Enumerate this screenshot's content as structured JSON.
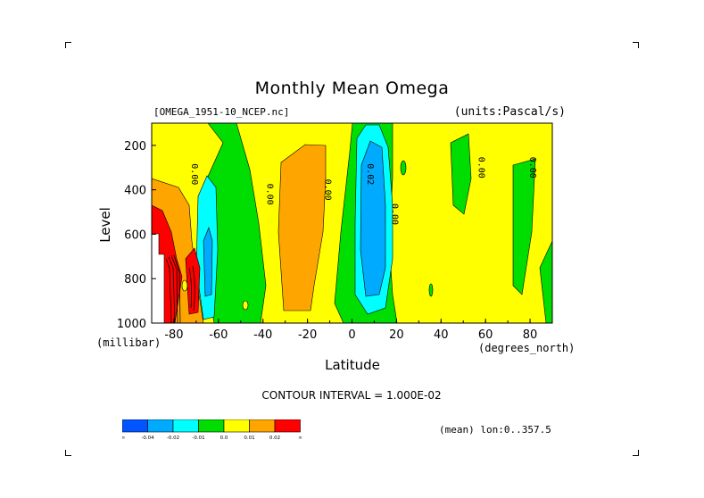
{
  "chart_data": {
    "type": "contour",
    "title": "Monthly Mean Omega",
    "file_label": "[OMEGA_1951-10_NCEP.nc]",
    "units_label": "(units:Pascal/s)",
    "xlabel": "Latitude",
    "x_units": "(degrees_north)",
    "ylabel": "Level",
    "y_units": "(millibar)",
    "xlim": [
      -90,
      90
    ],
    "ylim": [
      1000,
      100
    ],
    "x_ticks": [
      -80,
      -60,
      -40,
      -20,
      0,
      20,
      40,
      60,
      80
    ],
    "y_ticks": [
      200,
      400,
      600,
      800,
      1000
    ],
    "contour_interval_text": "CONTOUR INTERVAL = 1.000E-02",
    "mean_text": "(mean) lon:0..357.5",
    "levels": [
      -0.04,
      -0.02,
      -0.01,
      0.0,
      0.01,
      0.02
    ],
    "colorbar_labels": [
      "-∞",
      "-0.04",
      "-0.02",
      "-0.01",
      "0.0",
      "0.01",
      "0.02",
      "∞"
    ],
    "colorbar_colors": [
      "#0055ff",
      "#00aaff",
      "#00ffff",
      "#00dd00",
      "#ffff00",
      "#ffa500",
      "#ff0000"
    ],
    "contour_labels": [
      {
        "text": "0.00",
        "lat": -72,
        "lev": 330
      },
      {
        "text": "0.00",
        "lat": -38,
        "lev": 420
      },
      {
        "text": "0.00",
        "lat": -12,
        "lev": 400
      },
      {
        "text": "0.02",
        "lat": 7,
        "lev": 330
      },
      {
        "text": "0.00",
        "lat": 18,
        "lev": 510
      },
      {
        "text": "0.00",
        "lat": 57,
        "lev": 300
      },
      {
        "text": "0.00",
        "lat": 80,
        "lev": 300
      }
    ]
  }
}
